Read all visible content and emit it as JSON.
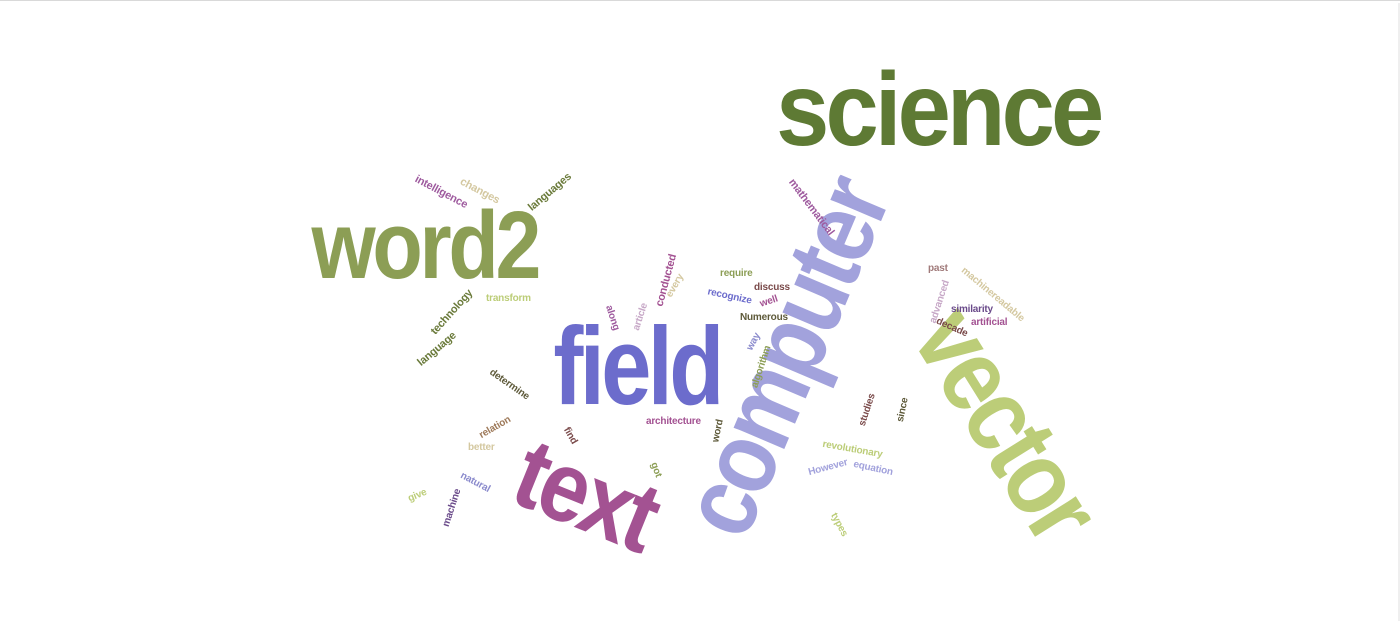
{
  "wordcloud": {
    "words": [
      {
        "id": "science",
        "text": "science",
        "color": "#5e7a34"
      },
      {
        "id": "word2",
        "text": "word2",
        "color": "#8c9e55"
      },
      {
        "id": "field",
        "text": "field",
        "color": "#6c6ccc"
      },
      {
        "id": "computer",
        "text": "computer",
        "color": "#a2a2dc"
      },
      {
        "id": "vector",
        "text": "vector",
        "color": "#bccd78"
      },
      {
        "id": "text",
        "text": "text",
        "color": "#a35292"
      },
      {
        "id": "intelligence",
        "text": "intelligence",
        "color": "#9e5a9e"
      },
      {
        "id": "changes",
        "text": "changes",
        "color": "#d4c8a0"
      },
      {
        "id": "languages",
        "text": "languages",
        "color": "#6a7a3a"
      },
      {
        "id": "technology",
        "text": "technology",
        "color": "#6a7a3a"
      },
      {
        "id": "transform",
        "text": "transform",
        "color": "#bccd78"
      },
      {
        "id": "language",
        "text": "language",
        "color": "#6a7a3a"
      },
      {
        "id": "mathematical",
        "text": "mathematical",
        "color": "#9e5a9e"
      },
      {
        "id": "conducted",
        "text": "conducted",
        "color": "#a35292"
      },
      {
        "id": "along",
        "text": "along",
        "color": "#9e5a9e"
      },
      {
        "id": "article",
        "text": "article",
        "color": "#c7a8c7"
      },
      {
        "id": "every",
        "text": "every",
        "color": "#d4c8a0"
      },
      {
        "id": "require",
        "text": "require",
        "color": "#8c9e55"
      },
      {
        "id": "discuss",
        "text": "discuss",
        "color": "#7a4a4a"
      },
      {
        "id": "recognize",
        "text": "recognize",
        "color": "#6c6ccc"
      },
      {
        "id": "well",
        "text": "well",
        "color": "#a35292"
      },
      {
        "id": "numerous",
        "text": "Numerous",
        "color": "#5e5a3a"
      },
      {
        "id": "way",
        "text": "way",
        "color": "#8a8acc"
      },
      {
        "id": "algorithm",
        "text": "algorithm",
        "color": "#8c9e55"
      },
      {
        "id": "past",
        "text": "past",
        "color": "#a07a7a"
      },
      {
        "id": "machinereadable",
        "text": "machinereadable",
        "color": "#d4c8a0"
      },
      {
        "id": "advanced",
        "text": "advanced",
        "color": "#c7a8c7"
      },
      {
        "id": "similarity",
        "text": "similarity",
        "color": "#6a4a8a"
      },
      {
        "id": "decade",
        "text": "decade",
        "color": "#7a4a4a"
      },
      {
        "id": "artificial",
        "text": "artificial",
        "color": "#a35292"
      },
      {
        "id": "determine",
        "text": "determine",
        "color": "#5e5a3a"
      },
      {
        "id": "relation",
        "text": "relation",
        "color": "#9e7a5a"
      },
      {
        "id": "better",
        "text": "better",
        "color": "#d4c8a0"
      },
      {
        "id": "find",
        "text": "find",
        "color": "#7a4a4a"
      },
      {
        "id": "architecture",
        "text": "architecture",
        "color": "#a35292"
      },
      {
        "id": "word",
        "text": "word",
        "color": "#5e5a3a"
      },
      {
        "id": "studies",
        "text": "studies",
        "color": "#7a4a4a"
      },
      {
        "id": "since",
        "text": "since",
        "color": "#5e5a3a"
      },
      {
        "id": "revolutionary",
        "text": "revolutionary",
        "color": "#bccd78"
      },
      {
        "id": "however",
        "text": "However",
        "color": "#a2a2dc"
      },
      {
        "id": "equation",
        "text": "equation",
        "color": "#a2a2dc"
      },
      {
        "id": "got",
        "text": "got",
        "color": "#8c9e55"
      },
      {
        "id": "natural",
        "text": "natural",
        "color": "#8a8acc"
      },
      {
        "id": "give",
        "text": "give",
        "color": "#bccd78"
      },
      {
        "id": "machine",
        "text": "machine",
        "color": "#6a4a8a"
      },
      {
        "id": "types",
        "text": "types",
        "color": "#bccd78"
      }
    ]
  }
}
